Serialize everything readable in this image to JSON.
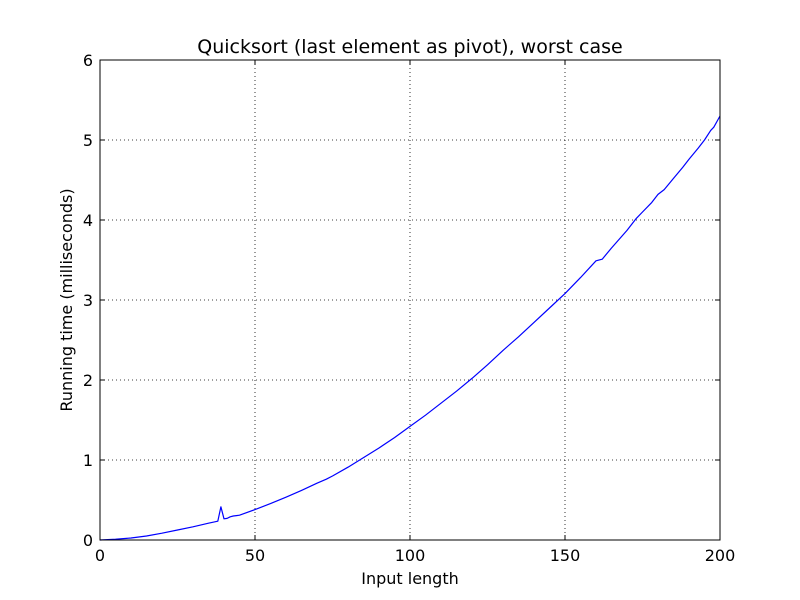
{
  "chart_data": {
    "type": "line",
    "title": "Quicksort (last element as pivot), worst case",
    "xlabel": "Input length",
    "ylabel": "Running time (milliseconds)",
    "xlim": [
      0,
      200
    ],
    "ylim": [
      0,
      6
    ],
    "x_ticks": [
      0,
      50,
      100,
      150,
      200
    ],
    "y_ticks": [
      0,
      1,
      2,
      3,
      4,
      5,
      6
    ],
    "grid": true,
    "grid_style": "dotted",
    "legend": "none",
    "series": [
      {
        "color": "#0000ff",
        "x": [
          0,
          5,
          10,
          15,
          20,
          25,
          30,
          35,
          38,
          39,
          40,
          41,
          42,
          43,
          44,
          45,
          50,
          55,
          60,
          65,
          70,
          73,
          75,
          80,
          85,
          90,
          95,
          100,
          105,
          110,
          115,
          120,
          125,
          130,
          135,
          140,
          145,
          150,
          155,
          160,
          162,
          165,
          170,
          173,
          175,
          178,
          180,
          182,
          185,
          188,
          190,
          193,
          195,
          197,
          198,
          200
        ],
        "y": [
          0,
          0.01,
          0.025,
          0.05,
          0.085,
          0.125,
          0.165,
          0.21,
          0.235,
          0.415,
          0.265,
          0.27,
          0.29,
          0.3,
          0.305,
          0.31,
          0.38,
          0.455,
          0.535,
          0.62,
          0.71,
          0.76,
          0.8,
          0.91,
          1.03,
          1.15,
          1.28,
          1.42,
          1.56,
          1.71,
          1.86,
          2.02,
          2.19,
          2.37,
          2.54,
          2.72,
          2.9,
          3.08,
          3.28,
          3.49,
          3.51,
          3.65,
          3.87,
          4.02,
          4.1,
          4.22,
          4.32,
          4.38,
          4.52,
          4.66,
          4.76,
          4.9,
          5.0,
          5.12,
          5.16,
          5.3
        ]
      }
    ]
  }
}
